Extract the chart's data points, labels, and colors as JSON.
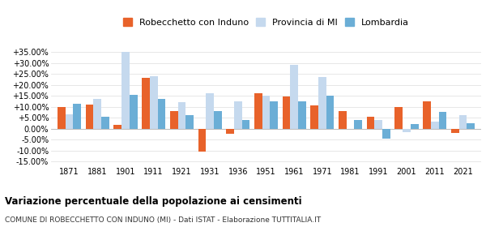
{
  "years": [
    1871,
    1881,
    1901,
    1911,
    1921,
    1931,
    1936,
    1951,
    1961,
    1971,
    1981,
    1991,
    2001,
    2011,
    2021
  ],
  "robecchetto": [
    9.8,
    10.8,
    1.5,
    23.0,
    7.8,
    -10.5,
    -2.5,
    16.0,
    14.5,
    10.5,
    7.8,
    5.5,
    10.0,
    12.5,
    -2.0
  ],
  "provincia_mi": [
    6.5,
    13.5,
    35.0,
    24.0,
    12.0,
    16.0,
    12.5,
    15.0,
    29.0,
    23.5,
    0.0,
    4.0,
    -1.5,
    3.2,
    6.0
  ],
  "lombardia": [
    11.5,
    5.5,
    15.5,
    13.5,
    6.0,
    8.0,
    4.0,
    12.5,
    12.5,
    15.0,
    4.0,
    -4.5,
    2.0,
    7.5,
    2.5
  ],
  "color_robecchetto": "#e8622a",
  "color_provincia": "#c5d9ee",
  "color_lombardia": "#6baed6",
  "title": "Variazione percentuale della popolazione ai censimenti",
  "subtitle": "COMUNE DI ROBECCHETTO CON INDUNO (MI) - Dati ISTAT - Elaborazione TUTTITALIA.IT",
  "legend_labels": [
    "Robecchetto con Induno",
    "Provincia di MI",
    "Lombardia"
  ],
  "ylim": [
    -17.0,
    38.0
  ],
  "yticks": [
    -15.0,
    -10.0,
    -5.0,
    0.0,
    5.0,
    10.0,
    15.0,
    20.0,
    25.0,
    30.0,
    35.0
  ],
  "bar_width": 0.28
}
